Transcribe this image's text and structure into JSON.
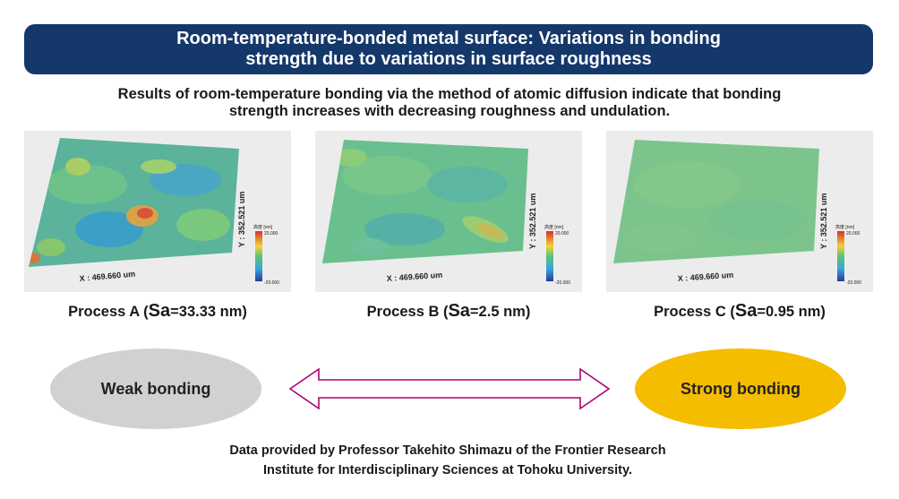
{
  "title": {
    "line1": "Room-temperature-bonded metal surface: Variations in bonding",
    "line2": "strength due to variations in surface roughness"
  },
  "subtitle": {
    "line1": "Results of room-temperature bonding via the method of atomic diffusion indicate that bonding",
    "line2": "strength increases with decreasing roughness and undulation."
  },
  "panels": [
    {
      "x_axis": "X : 469.660 um",
      "y_axis": "Y : 352.521 um",
      "scale_title": "高度 [nm]",
      "scale_max": "20.000",
      "scale_min": "-20.000"
    },
    {
      "x_axis": "X : 469.660 um",
      "y_axis": "Y : 352.521 um",
      "scale_title": "高度 [nm]",
      "scale_max": "20.000",
      "scale_min": "-20.000"
    },
    {
      "x_axis": "X : 469.660 um",
      "y_axis": "Y : 352.521 um",
      "scale_title": "高度 [nm]",
      "scale_max": "20.000",
      "scale_min": "-20.000"
    }
  ],
  "processes": [
    {
      "prefix": "Process A (",
      "sa": "Sa",
      "value": "=33.33 nm)"
    },
    {
      "prefix": "Process B (",
      "sa": "Sa",
      "value": "=2.5 nm)"
    },
    {
      "prefix": "Process C (",
      "sa": "Sa",
      "value": "=0.95 nm)"
    }
  ],
  "bonding": {
    "weak": "Weak bonding",
    "strong": "Strong bonding"
  },
  "credit": {
    "line1": "Data provided by Professor Takehito Shimazu of the Frontier Research",
    "line2": "Institute for Interdisciplinary Sciences at Tohoku University."
  },
  "colors": {
    "banner": "#15386b",
    "weak": "#d1d1d1",
    "strong": "#f5bd00",
    "arrow": "#b0006e"
  }
}
